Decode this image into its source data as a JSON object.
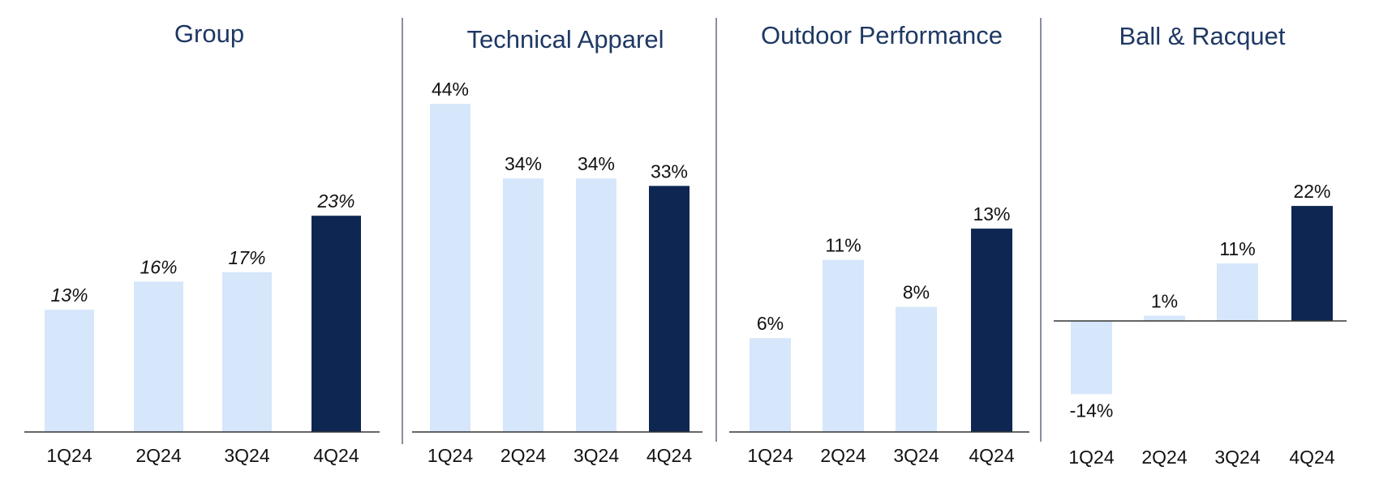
{
  "colors": {
    "highlight": "#0e2652",
    "base": "#d6e6fb",
    "title": "#1f3864",
    "axis": "#333333",
    "divider": "#4a5568"
  },
  "chart_data": [
    {
      "type": "bar",
      "title": "Group",
      "categories": [
        "1Q24",
        "2Q24",
        "3Q24",
        "4Q24"
      ],
      "values": [
        13,
        16,
        17,
        23
      ],
      "labels": [
        "13%",
        "16%",
        "17%",
        "23%"
      ],
      "highlight_index": 3,
      "italic_labels": true,
      "ylim": [
        0,
        44
      ]
    },
    {
      "type": "bar",
      "title": "Technical Apparel",
      "categories": [
        "1Q24",
        "2Q24",
        "3Q24",
        "4Q24"
      ],
      "values": [
        44,
        34,
        34,
        33
      ],
      "labels": [
        "44%",
        "34%",
        "34%",
        "33%"
      ],
      "highlight_index": 3,
      "italic_labels": false,
      "ylim": [
        0,
        44
      ]
    },
    {
      "type": "bar",
      "title": "Outdoor Performance",
      "categories": [
        "1Q24",
        "2Q24",
        "3Q24",
        "4Q24"
      ],
      "values": [
        6,
        11,
        8,
        13
      ],
      "labels": [
        "6%",
        "11%",
        "8%",
        "13%"
      ],
      "highlight_index": 3,
      "italic_labels": false,
      "ylim": [
        0,
        14
      ]
    },
    {
      "type": "bar",
      "title": "Ball & Racquet",
      "categories": [
        "1Q24",
        "2Q24",
        "3Q24",
        "4Q24"
      ],
      "values": [
        -14,
        1,
        11,
        22
      ],
      "labels": [
        "-14%",
        "1%",
        "11%",
        "22%"
      ],
      "highlight_index": 3,
      "italic_labels": false,
      "ylim": [
        -14,
        22
      ]
    }
  ]
}
